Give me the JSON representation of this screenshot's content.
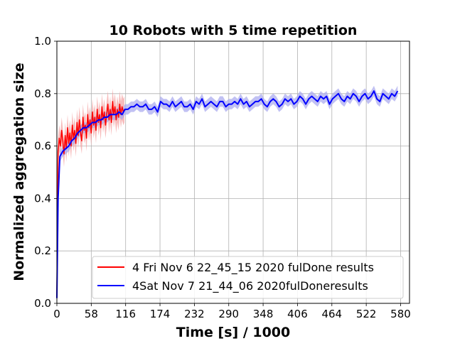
{
  "chart_data": {
    "type": "line",
    "title": "10 Robots with 5 time repetition",
    "xlabel": "Time [s] / 1000",
    "ylabel": "Normalized aggregation size",
    "xlim": [
      0,
      595
    ],
    "ylim": [
      0.0,
      1.0
    ],
    "xticks": [
      0,
      58,
      116,
      174,
      232,
      290,
      348,
      406,
      464,
      522,
      580
    ],
    "yticks": [
      0.0,
      0.2,
      0.4,
      0.6,
      0.8,
      1.0
    ],
    "ytick_labels": [
      "0.0",
      "0.2",
      "0.4",
      "0.6",
      "0.8",
      "1.0"
    ],
    "grid": true,
    "legend_position": "lower-right",
    "series": [
      {
        "name": "4 Fri Nov  6 22_45_15 2020 fulDone results",
        "color": "#ff0000",
        "band_color": "#f4a0a0",
        "x": [
          0,
          2,
          4,
          6,
          8,
          10,
          12,
          14,
          16,
          18,
          20,
          22,
          24,
          26,
          28,
          30,
          32,
          34,
          36,
          38,
          40,
          42,
          44,
          46,
          48,
          50,
          52,
          54,
          56,
          58,
          60,
          62,
          64,
          66,
          68,
          70,
          72,
          74,
          76,
          78,
          80,
          82,
          84,
          86,
          88,
          90,
          92,
          94,
          96,
          98,
          100,
          102,
          104,
          106,
          108,
          110,
          112,
          114
        ],
        "y": [
          0.02,
          0.58,
          0.63,
          0.6,
          0.66,
          0.62,
          0.57,
          0.64,
          0.59,
          0.67,
          0.61,
          0.65,
          0.6,
          0.68,
          0.63,
          0.66,
          0.61,
          0.69,
          0.64,
          0.7,
          0.65,
          0.62,
          0.71,
          0.66,
          0.68,
          0.63,
          0.72,
          0.67,
          0.7,
          0.65,
          0.73,
          0.68,
          0.71,
          0.66,
          0.74,
          0.69,
          0.72,
          0.67,
          0.75,
          0.7,
          0.73,
          0.68,
          0.72,
          0.76,
          0.7,
          0.74,
          0.69,
          0.77,
          0.72,
          0.75,
          0.7,
          0.74,
          0.71,
          0.76,
          0.72,
          0.75,
          0.73,
          0.74
        ],
        "band": 0.05
      },
      {
        "name": "4Sat Nov  7 21_44_06 2020fulDoneresults",
        "color": "#0000ff",
        "band_color": "#a6a6ee",
        "x": [
          0,
          2,
          5,
          10,
          15,
          20,
          25,
          30,
          35,
          40,
          45,
          50,
          55,
          60,
          65,
          70,
          75,
          80,
          85,
          90,
          95,
          100,
          105,
          110,
          115,
          120,
          125,
          130,
          135,
          140,
          145,
          150,
          155,
          160,
          165,
          170,
          175,
          180,
          185,
          190,
          195,
          200,
          205,
          210,
          215,
          220,
          225,
          230,
          235,
          240,
          245,
          250,
          255,
          260,
          265,
          270,
          275,
          280,
          285,
          290,
          295,
          300,
          305,
          310,
          315,
          320,
          325,
          330,
          335,
          340,
          345,
          350,
          355,
          360,
          365,
          370,
          375,
          380,
          385,
          390,
          395,
          400,
          405,
          410,
          415,
          420,
          425,
          430,
          435,
          440,
          445,
          450,
          455,
          460,
          465,
          470,
          475,
          480,
          485,
          490,
          495,
          500,
          505,
          510,
          515,
          520,
          525,
          530,
          535,
          540,
          545,
          550,
          555,
          560,
          565,
          570,
          575
        ],
        "y": [
          0.02,
          0.4,
          0.56,
          0.58,
          0.59,
          0.6,
          0.62,
          0.63,
          0.65,
          0.66,
          0.67,
          0.67,
          0.68,
          0.69,
          0.69,
          0.7,
          0.7,
          0.71,
          0.71,
          0.72,
          0.72,
          0.72,
          0.73,
          0.72,
          0.74,
          0.74,
          0.75,
          0.75,
          0.76,
          0.75,
          0.75,
          0.76,
          0.74,
          0.74,
          0.75,
          0.73,
          0.77,
          0.76,
          0.76,
          0.75,
          0.77,
          0.75,
          0.76,
          0.77,
          0.75,
          0.75,
          0.76,
          0.74,
          0.77,
          0.76,
          0.78,
          0.75,
          0.76,
          0.77,
          0.76,
          0.75,
          0.77,
          0.77,
          0.75,
          0.76,
          0.76,
          0.77,
          0.76,
          0.78,
          0.76,
          0.77,
          0.75,
          0.76,
          0.77,
          0.77,
          0.78,
          0.76,
          0.75,
          0.77,
          0.78,
          0.77,
          0.75,
          0.76,
          0.78,
          0.77,
          0.78,
          0.76,
          0.77,
          0.79,
          0.78,
          0.76,
          0.78,
          0.79,
          0.78,
          0.77,
          0.79,
          0.78,
          0.79,
          0.76,
          0.78,
          0.79,
          0.8,
          0.78,
          0.77,
          0.79,
          0.78,
          0.8,
          0.79,
          0.77,
          0.79,
          0.8,
          0.78,
          0.79,
          0.81,
          0.78,
          0.77,
          0.8,
          0.79,
          0.78,
          0.8,
          0.79,
          0.81
        ],
        "band": 0.02
      }
    ]
  }
}
